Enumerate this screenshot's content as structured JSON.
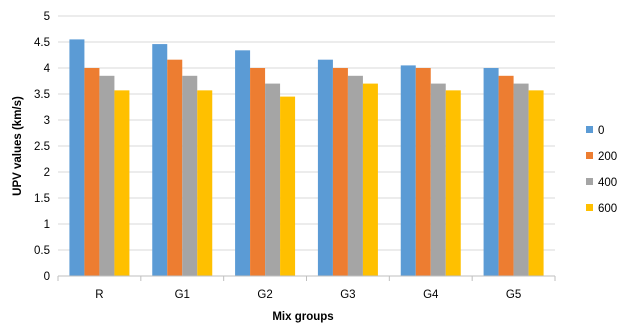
{
  "chart_data": {
    "type": "bar",
    "title": "",
    "xlabel": "Mix groups",
    "ylabel": "UPV values (km/s)",
    "categories": [
      "R",
      "G1",
      "G2",
      "G3",
      "G4",
      "G5"
    ],
    "series": [
      {
        "name": "0",
        "color": "#5B9BD5",
        "values": [
          4.55,
          4.46,
          4.34,
          4.16,
          4.05,
          4.0
        ]
      },
      {
        "name": "200",
        "color": "#ED7D31",
        "values": [
          4.0,
          4.16,
          4.0,
          4.0,
          4.0,
          3.85
        ]
      },
      {
        "name": "400",
        "color": "#A5A5A5",
        "values": [
          3.85,
          3.85,
          3.7,
          3.85,
          3.7,
          3.7
        ]
      },
      {
        "name": "600",
        "color": "#FFC000",
        "values": [
          3.57,
          3.57,
          3.45,
          3.7,
          3.57,
          3.57
        ]
      }
    ],
    "ylim": [
      0,
      5
    ],
    "yticks": [
      "0",
      "0.5",
      "1",
      "1.5",
      "2",
      "2.5",
      "3",
      "3.5",
      "4",
      "4.5",
      "5"
    ],
    "grid": true,
    "legend_position": "right"
  }
}
